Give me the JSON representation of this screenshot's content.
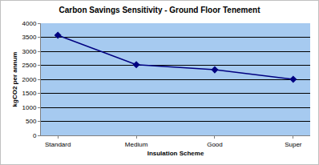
{
  "chart_data": {
    "type": "line",
    "title": "Carbon Savings Sensitivity - Ground Floor Tenement",
    "x_label": "Insulation Scheme",
    "y_label": "kgCO2 per annum",
    "categories": [
      "Standard",
      "Medium",
      "Good",
      "Super"
    ],
    "values": [
      3570,
      2520,
      2340,
      2000
    ],
    "color": "#000080",
    "marker": "diamond",
    "ylim": [
      0,
      4000
    ],
    "yticks": [
      0,
      500,
      1000,
      1500,
      2000,
      2500,
      3000,
      3500,
      4000
    ],
    "grid": true
  }
}
